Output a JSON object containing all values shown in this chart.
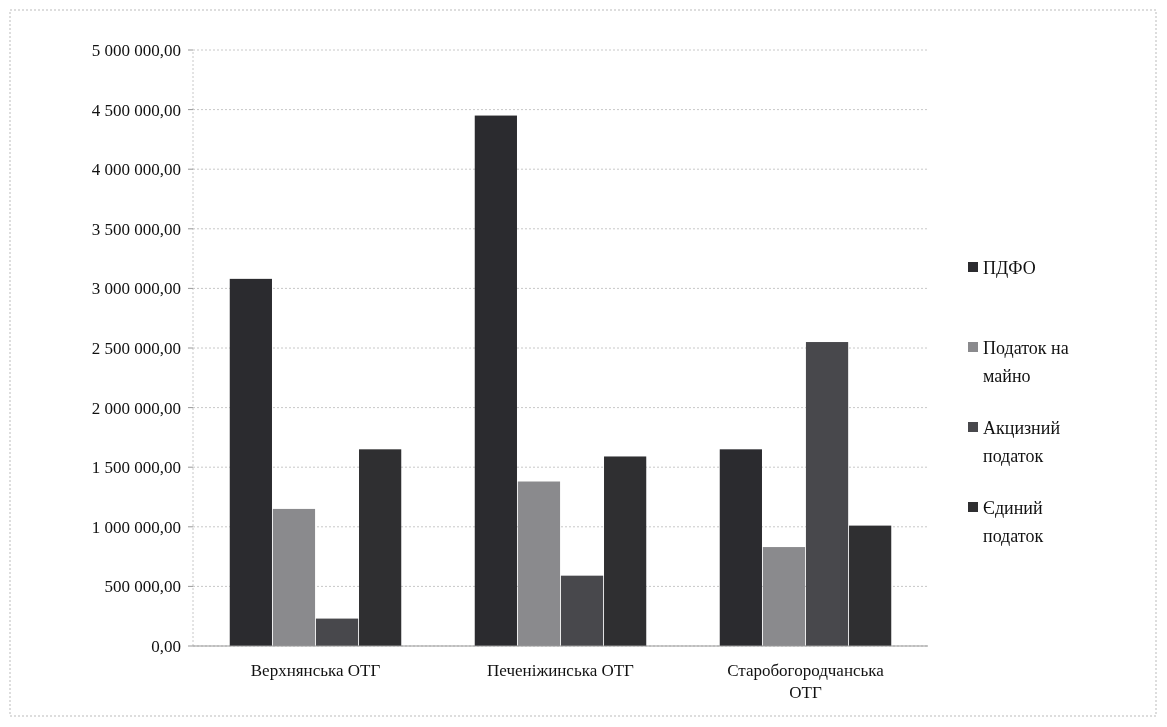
{
  "chart_data": {
    "type": "bar",
    "categories": [
      "Верхнянська ОТГ",
      "Печеніжинська ОТГ",
      "Старобогородчанська ОТГ"
    ],
    "series": [
      {
        "name": "ПДФО",
        "color": "#2b2b2f",
        "values": [
          3080000,
          4450000,
          1650000
        ]
      },
      {
        "name": "Податок на майно",
        "color": "#8a8a8d",
        "values": [
          1150000,
          1380000,
          830000
        ]
      },
      {
        "name": "Акцизний податок",
        "color": "#48484c",
        "values": [
          230000,
          590000,
          2550000
        ]
      },
      {
        "name": "Єдиний податок",
        "color": "#2f2f31",
        "values": [
          1650000,
          1590000,
          1010000
        ]
      }
    ],
    "ylim": [
      0,
      5000000
    ],
    "yticks": [
      {
        "value": 0,
        "label": "0,00"
      },
      {
        "value": 500000,
        "label": "500 000,00"
      },
      {
        "value": 1000000,
        "label": "1 000 000,00"
      },
      {
        "value": 1500000,
        "label": "1 500 000,00"
      },
      {
        "value": 2000000,
        "label": "2 000 000,00"
      },
      {
        "value": 2500000,
        "label": "2 500 000,00"
      },
      {
        "value": 3000000,
        "label": "3 000 000,00"
      },
      {
        "value": 3500000,
        "label": "3 500 000,00"
      },
      {
        "value": 4000000,
        "label": "4 000 000,00"
      },
      {
        "value": 4500000,
        "label": "4 500 000,00"
      },
      {
        "value": 5000000,
        "label": "5 000 000,00"
      }
    ],
    "grid": "y",
    "legend": "right"
  }
}
